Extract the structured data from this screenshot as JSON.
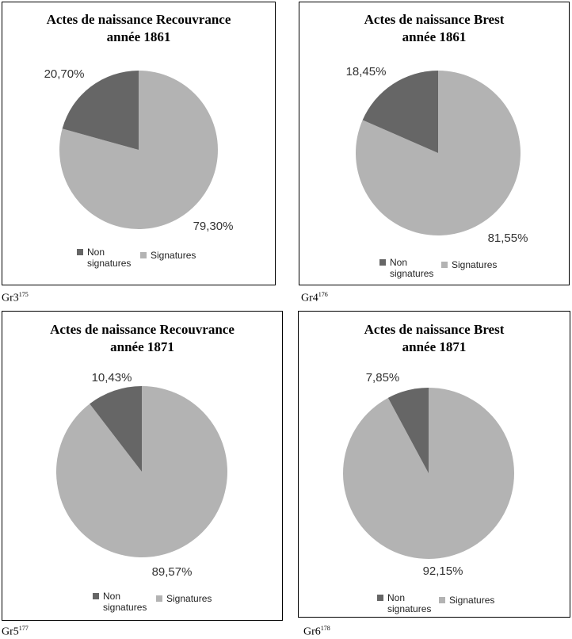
{
  "colors": {
    "non_signatures": "#666666",
    "signatures": "#b3b3b3"
  },
  "chart_data": [
    {
      "type": "pie",
      "title_line1": "Actes de naissance Recouvrance",
      "title_line2": "année 1861",
      "slices": [
        {
          "label": "Non signatures",
          "value": 20.7,
          "label_text": "20,70%"
        },
        {
          "label": "Signatures",
          "value": 79.3,
          "label_text": "79,30%"
        }
      ],
      "legend": {
        "non_signatures": "Non\nsignatures",
        "signatures": "Signatures"
      },
      "caption": "Gr3",
      "caption_note": "175"
    },
    {
      "type": "pie",
      "title_line1": "Actes de naissance Brest",
      "title_line2": "année 1861",
      "slices": [
        {
          "label": "Non signatures",
          "value": 18.45,
          "label_text": "18,45%"
        },
        {
          "label": "Signatures",
          "value": 81.55,
          "label_text": "81,55%"
        }
      ],
      "legend": {
        "non_signatures": "Non\nsignatures",
        "signatures": "Signatures"
      },
      "caption": "Gr4",
      "caption_note": "176"
    },
    {
      "type": "pie",
      "title_line1": "Actes de naissance Recouvrance",
      "title_line2": "année 1871",
      "slices": [
        {
          "label": "Non signatures",
          "value": 10.43,
          "label_text": "10,43%"
        },
        {
          "label": "Signatures",
          "value": 89.57,
          "label_text": "89,57%"
        }
      ],
      "legend": {
        "non_signatures": "Non\nsignatures",
        "signatures": "Signatures"
      },
      "caption": "Gr5",
      "caption_note": "177"
    },
    {
      "type": "pie",
      "title_line1": "Actes de naissance Brest",
      "title_line2": "année 1871",
      "slices": [
        {
          "label": "Non signatures",
          "value": 7.85,
          "label_text": "7,85%"
        },
        {
          "label": "Signatures",
          "value": 92.15,
          "label_text": "92,15%"
        }
      ],
      "legend": {
        "non_signatures": "Non\nsignatures",
        "signatures": "Signatures"
      },
      "caption": "Gr6",
      "caption_note": "178"
    }
  ]
}
